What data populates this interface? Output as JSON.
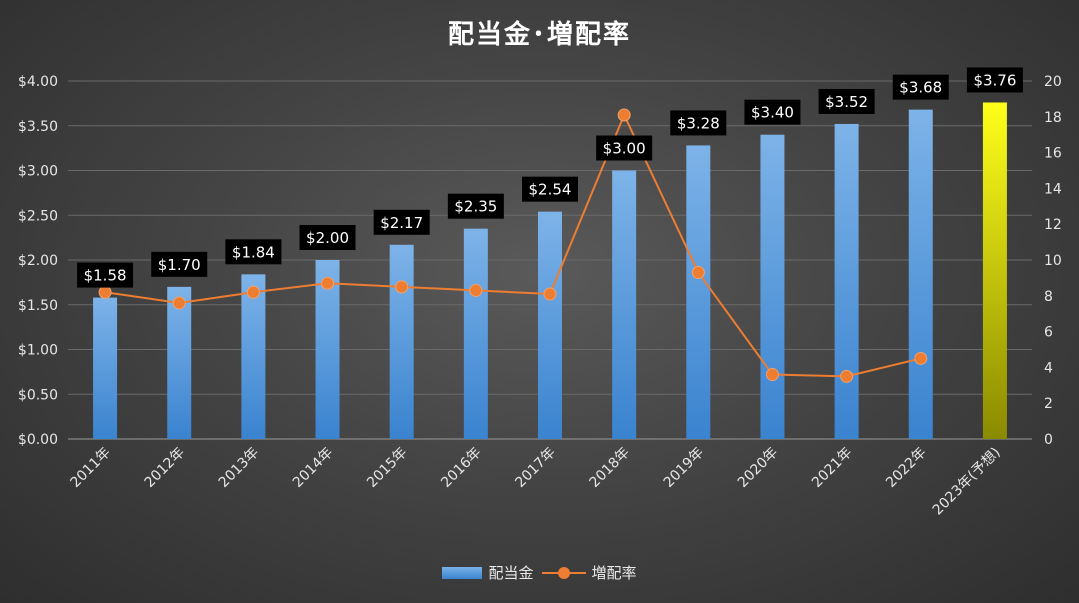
{
  "colors": {
    "bar_top": "#7db3e8",
    "bar_bottom": "#3a83cf",
    "forecast_top": "#ffff1a",
    "forecast_bottom": "#8a8a00",
    "line": "#ed7d31",
    "label_bg": "#000000",
    "label_text": "#ffffff",
    "axis_text": "#e6e6e6",
    "gridline": "#6a6a6a"
  },
  "chart_data": {
    "type": "bar",
    "title": "配当金･増配率",
    "categories": [
      "2011年",
      "2012年",
      "2013年",
      "2014年",
      "2015年",
      "2016年",
      "2017年",
      "2018年",
      "2019年",
      "2020年",
      "2021年",
      "2022年",
      "2023年(予想)"
    ],
    "series": [
      {
        "name": "配当金",
        "type": "bar",
        "axis": "left",
        "values": [
          1.58,
          1.7,
          1.84,
          2.0,
          2.17,
          2.35,
          2.54,
          3.0,
          3.28,
          3.4,
          3.52,
          3.68,
          3.76
        ],
        "data_labels": [
          "$1.58",
          "$1.70",
          "$1.84",
          "$2.00",
          "$2.17",
          "$2.35",
          "$2.54",
          "$3.00",
          "$3.28",
          "$3.40",
          "$3.52",
          "$3.68",
          "$3.76"
        ],
        "highlight_index": 12
      },
      {
        "name": "増配率",
        "type": "line",
        "axis": "right",
        "values": [
          8.2,
          7.6,
          8.2,
          8.7,
          8.5,
          8.3,
          8.1,
          18.1,
          9.3,
          3.6,
          3.5,
          4.5,
          null
        ]
      }
    ],
    "y_left": {
      "ylim": [
        0,
        4
      ],
      "ticks": [
        0,
        0.5,
        1,
        1.5,
        2,
        2.5,
        3,
        3.5,
        4
      ],
      "tick_labels": [
        "$0.00",
        "$0.50",
        "$1.00",
        "$1.50",
        "$2.00",
        "$2.50",
        "$3.00",
        "$3.50",
        "$4.00"
      ]
    },
    "y_right": {
      "ylim": [
        0,
        20
      ],
      "ticks": [
        0,
        2,
        4,
        6,
        8,
        10,
        12,
        14,
        16,
        18,
        20
      ],
      "tick_labels": [
        "0",
        "2",
        "4",
        "6",
        "8",
        "10",
        "12",
        "14",
        "16",
        "18",
        "20"
      ]
    },
    "grid": true,
    "legend_position": "bottom"
  }
}
